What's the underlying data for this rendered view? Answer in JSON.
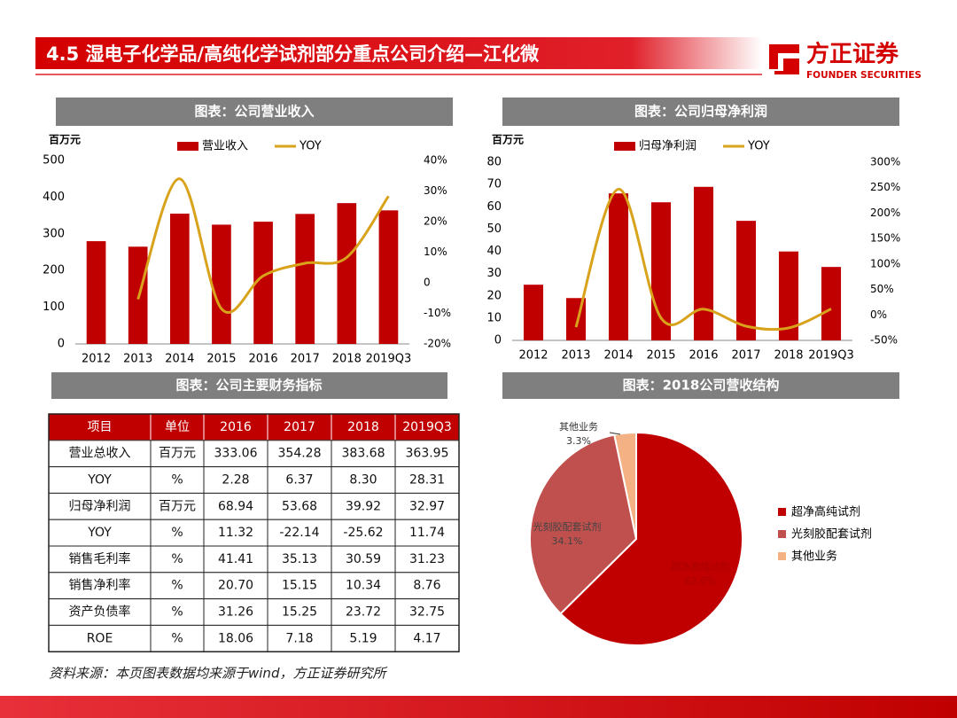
{
  "header": {
    "title": "4.5 湿电子化学品/高纯化学试剂部分重点公司介绍—江化微",
    "logo_name": "方正证券",
    "logo_sub": "FOUNDER SECURITIES"
  },
  "chart_data": [
    {
      "type": "bar",
      "title": "图表：公司营业收入",
      "y_label": "百万元",
      "categories": [
        "2012",
        "2013",
        "2014",
        "2015",
        "2016",
        "2017",
        "2018",
        "2019Q3"
      ],
      "series": [
        {
          "name": "营业收入",
          "color": "#c00000",
          "values": [
            280,
            265,
            355,
            325,
            333.06,
            354.28,
            383.68,
            363.95
          ]
        },
        {
          "name": "YOY",
          "color": "#d9a21b",
          "type": "line",
          "axis": "y2",
          "values": [
            null,
            -5.4,
            34.0,
            -8.5,
            2.28,
            6.37,
            8.3,
            28.31
          ]
        }
      ],
      "ylim": [
        0,
        500
      ],
      "yticks": [
        0,
        100,
        200,
        300,
        400,
        500
      ],
      "y2lim": [
        -20,
        40
      ],
      "y2ticks": [
        {
          "value": -20,
          "label": "-20%"
        },
        {
          "value": -10,
          "label": "-10%"
        },
        {
          "value": 0,
          "label": "0"
        },
        {
          "value": 10,
          "label": "10%"
        },
        {
          "value": 20,
          "label": "20%"
        },
        {
          "value": 30,
          "label": "30%"
        },
        {
          "value": 40,
          "label": "40%"
        }
      ],
      "grid": false
    },
    {
      "type": "bar",
      "title": "图表：公司归母净利润",
      "y_label": "百万元",
      "categories": [
        "2012",
        "2013",
        "2014",
        "2015",
        "2016",
        "2017",
        "2018",
        "2019Q3"
      ],
      "series": [
        {
          "name": "归母净利润",
          "color": "#c00000",
          "values": [
            25,
            19,
            66,
            62,
            68.94,
            53.68,
            39.92,
            32.97
          ]
        },
        {
          "name": "YOY",
          "color": "#d9a21b",
          "type": "line",
          "axis": "y2",
          "values": [
            null,
            -24,
            247,
            -6,
            11.32,
            -22.14,
            -25.62,
            11.74
          ]
        }
      ],
      "ylim": [
        0,
        80
      ],
      "yticks": [
        0,
        10,
        20,
        30,
        40,
        50,
        60,
        70,
        80
      ],
      "y2lim": [
        -50,
        300
      ],
      "y2ticks": [
        {
          "value": -50,
          "label": "-50%"
        },
        {
          "value": 0,
          "label": "0%"
        },
        {
          "value": 50,
          "label": "50%"
        },
        {
          "value": 100,
          "label": "100%"
        },
        {
          "value": 150,
          "label": "150%"
        },
        {
          "value": 200,
          "label": "200%"
        },
        {
          "value": 250,
          "label": "250%"
        },
        {
          "value": 300,
          "label": "300%"
        }
      ],
      "grid": false
    },
    {
      "type": "pie",
      "title": "图表：2018公司营收结构",
      "categories": [
        "超净高纯试剂",
        "光刻胶配套试剂",
        "其他业务"
      ],
      "values": [
        62.6,
        34.1,
        3.3
      ],
      "value_labels": [
        "62.6%",
        "34.1%",
        "3.3%"
      ],
      "colors": [
        "#c00000",
        "#c0504d",
        "#f4b183"
      ]
    }
  ],
  "table": {
    "title": "图表：公司主要财务指标",
    "header": [
      "项目",
      "单位",
      "2016",
      "2017",
      "2018",
      "2019Q3"
    ],
    "rows": [
      [
        "营业总收入",
        "百万元",
        "333.06",
        "354.28",
        "383.68",
        "363.95"
      ],
      [
        "YOY",
        "%",
        "2.28",
        "6.37",
        "8.30",
        "28.31"
      ],
      [
        "归母净利润",
        "百万元",
        "68.94",
        "53.68",
        "39.92",
        "32.97"
      ],
      [
        "YOY",
        "%",
        "11.32",
        "-22.14",
        "-25.62",
        "11.74"
      ],
      [
        "销售毛利率",
        "%",
        "41.41",
        "35.13",
        "30.59",
        "31.23"
      ],
      [
        "销售净利率",
        "%",
        "20.70",
        "15.15",
        "10.34",
        "8.76"
      ],
      [
        "资产负债率",
        "%",
        "31.26",
        "15.25",
        "23.72",
        "32.75"
      ],
      [
        "ROE",
        "%",
        "18.06",
        "7.18",
        "5.19",
        "4.17"
      ]
    ]
  },
  "footer": "资料来源：本页图表数据均来源于wind，方正证券研究所"
}
